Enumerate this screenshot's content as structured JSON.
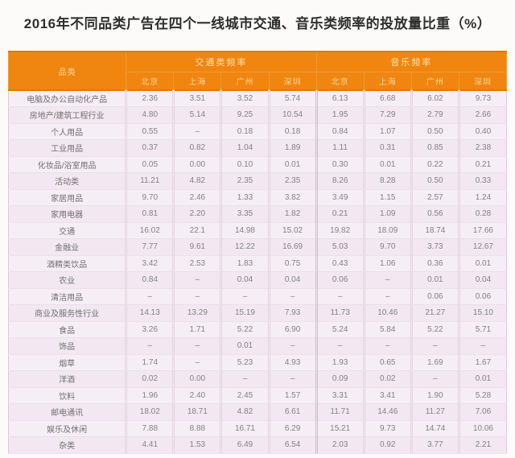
{
  "page_title": "2016年不同品类广告在四个一线城市交通、音乐类频率的投放量比重（%）",
  "colors": {
    "header_bg": "#F0850F",
    "header_text": "#FFE2B2",
    "body_bg": "#F5EBF3",
    "title_text": "#2E2E2E",
    "value_text": "#828282"
  },
  "chart_data": {
    "type": "table",
    "title": "2016年不同品类广告在四个一线城市交通、音乐类频率的投放量比重（%）",
    "unit": "%",
    "category_header": "品类",
    "column_groups": [
      {
        "label": "交通类频率",
        "columns": [
          "北京",
          "上海",
          "广州",
          "深圳"
        ]
      },
      {
        "label": "音乐频率",
        "columns": [
          "北京",
          "上海",
          "广州",
          "深圳"
        ]
      }
    ],
    "rows": [
      {
        "category": "电脑及办公自动化产品",
        "values": [
          "2.36",
          "3.51",
          "3.52",
          "5.74",
          "6.13",
          "6.68",
          "6.02",
          "9.73"
        ]
      },
      {
        "category": "房地产/建筑工程行业",
        "values": [
          "4.80",
          "5.14",
          "9.25",
          "10.54",
          "1.95",
          "7.29",
          "2.79",
          "2.66"
        ]
      },
      {
        "category": "个人用品",
        "values": [
          "0.55",
          "–",
          "0.18",
          "0.18",
          "0.84",
          "1.07",
          "0.50",
          "0.40"
        ]
      },
      {
        "category": "工业用品",
        "values": [
          "0.37",
          "0.82",
          "1.04",
          "1.89",
          "1.11",
          "0.31",
          "0.85",
          "2.38"
        ]
      },
      {
        "category": "化妆品/浴室用品",
        "values": [
          "0.05",
          "0.00",
          "0.10",
          "0.01",
          "0.30",
          "0.01",
          "0.22",
          "0.21"
        ]
      },
      {
        "category": "活动类",
        "values": [
          "11.21",
          "4.82",
          "2.35",
          "2.35",
          "8.26",
          "8.28",
          "0.50",
          "0.33"
        ]
      },
      {
        "category": "家居用品",
        "values": [
          "9.70",
          "2.46",
          "1.33",
          "3.82",
          "3.49",
          "1.15",
          "2.57",
          "1.24"
        ]
      },
      {
        "category": "家用电器",
        "values": [
          "0.81",
          "2.20",
          "3.35",
          "1.82",
          "0.21",
          "1.09",
          "0.56",
          "0.28"
        ]
      },
      {
        "category": "交通",
        "values": [
          "16.02",
          "22.1",
          "14.98",
          "15.02",
          "19.82",
          "18.09",
          "18.74",
          "17.66"
        ]
      },
      {
        "category": "金融业",
        "values": [
          "7.77",
          "9.61",
          "12.22",
          "16.69",
          "5.03",
          "9.70",
          "3.73",
          "12.67"
        ]
      },
      {
        "category": "酒精类饮品",
        "values": [
          "3.42",
          "2.53",
          "1.83",
          "0.75",
          "0.43",
          "1.06",
          "0.36",
          "0.01"
        ]
      },
      {
        "category": "农业",
        "values": [
          "0.84",
          "–",
          "0.04",
          "0.04",
          "0.06",
          "–",
          "0.01",
          "0.04"
        ]
      },
      {
        "category": "清洁用品",
        "values": [
          "–",
          "–",
          "–",
          "–",
          "–",
          "–",
          "0.06",
          "0.06"
        ]
      },
      {
        "category": "商业及服务性行业",
        "values": [
          "14.13",
          "13.29",
          "15.19",
          "7.93",
          "11.73",
          "10.46",
          "21.27",
          "15.10"
        ]
      },
      {
        "category": "食品",
        "values": [
          "3.26",
          "1.71",
          "5.22",
          "6.90",
          "5.24",
          "5.84",
          "5.22",
          "5.71"
        ]
      },
      {
        "category": "饰品",
        "values": [
          "–",
          "–",
          "0.01",
          "–",
          "–",
          "–",
          "–",
          "–"
        ]
      },
      {
        "category": "烟草",
        "values": [
          "1.74",
          "–",
          "5.23",
          "4.93",
          "1.93",
          "0.65",
          "1.69",
          "1.67"
        ]
      },
      {
        "category": "洋酒",
        "values": [
          "0.02",
          "0.00",
          "–",
          "–",
          "0.09",
          "0.02",
          "–",
          "0.01"
        ]
      },
      {
        "category": "饮料",
        "values": [
          "1.96",
          "2.40",
          "2.45",
          "1.57",
          "3.31",
          "3.41",
          "1.90",
          "5.28"
        ]
      },
      {
        "category": "邮电通讯",
        "values": [
          "18.02",
          "18.71",
          "4.82",
          "6.61",
          "11.71",
          "14.46",
          "11.27",
          "7.06"
        ]
      },
      {
        "category": "娱乐及休闲",
        "values": [
          "7.88",
          "8.88",
          "16.71",
          "6.29",
          "15.21",
          "9.73",
          "14.74",
          "10.06"
        ]
      },
      {
        "category": "杂类",
        "values": [
          "4.41",
          "1.53",
          "6.49",
          "6.54",
          "2.03",
          "0.92",
          "3.77",
          "2.21"
        ]
      }
    ]
  }
}
